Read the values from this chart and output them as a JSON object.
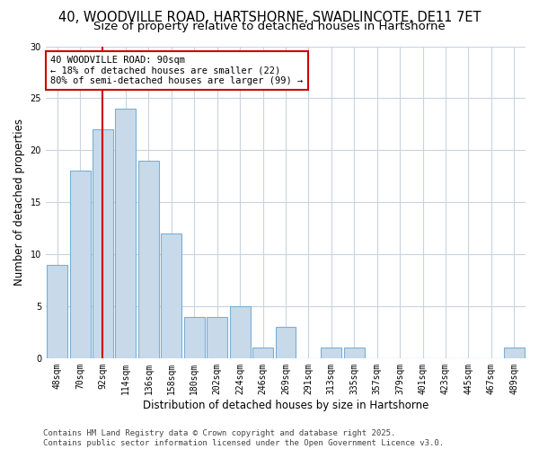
{
  "title": "40, WOODVILLE ROAD, HARTSHORNE, SWADLINCOTE, DE11 7ET",
  "subtitle": "Size of property relative to detached houses in Hartshorne",
  "xlabel": "Distribution of detached houses by size in Hartshorne",
  "ylabel": "Number of detached properties",
  "categories": [
    "48sqm",
    "70sqm",
    "92sqm",
    "114sqm",
    "136sqm",
    "158sqm",
    "180sqm",
    "202sqm",
    "224sqm",
    "246sqm",
    "269sqm",
    "291sqm",
    "313sqm",
    "335sqm",
    "357sqm",
    "379sqm",
    "401sqm",
    "423sqm",
    "445sqm",
    "467sqm",
    "489sqm"
  ],
  "values": [
    9,
    18,
    22,
    24,
    19,
    12,
    4,
    4,
    5,
    1,
    3,
    0,
    1,
    1,
    0,
    0,
    0,
    0,
    0,
    0,
    1
  ],
  "bar_color": "#c8daea",
  "bar_edge_color": "#7aafd4",
  "vline_x": 2.0,
  "vline_color": "#cc0000",
  "annotation_text": "40 WOODVILLE ROAD: 90sqm\n← 18% of detached houses are smaller (22)\n80% of semi-detached houses are larger (99) →",
  "annotation_box_color": "white",
  "annotation_box_edge_color": "#cc0000",
  "ylim": [
    0,
    30
  ],
  "yticks": [
    0,
    5,
    10,
    15,
    20,
    25,
    30
  ],
  "grid_color": "#c8d4e0",
  "bg_color": "#ffffff",
  "plot_bg_color": "#ffffff",
  "footnote": "Contains HM Land Registry data © Crown copyright and database right 2025.\nContains public sector information licensed under the Open Government Licence v3.0.",
  "title_fontsize": 10.5,
  "subtitle_fontsize": 9.5,
  "axis_label_fontsize": 8.5,
  "tick_fontsize": 7,
  "annotation_fontsize": 7.5,
  "footnote_fontsize": 6.5
}
